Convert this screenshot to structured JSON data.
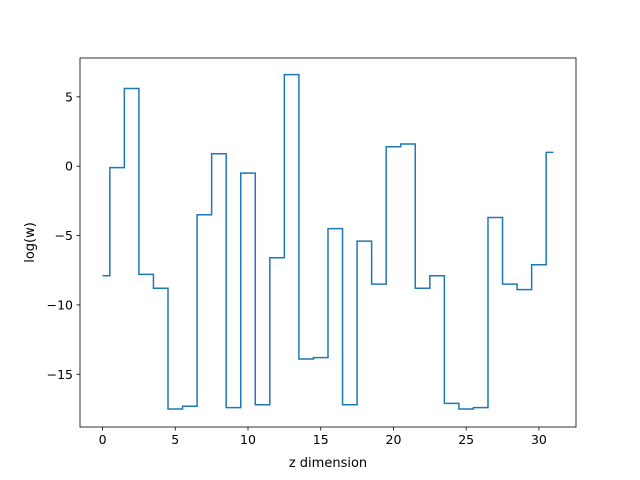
{
  "chart_data": {
    "type": "line",
    "drawstyle": "steps-mid",
    "title": "",
    "xlabel": "z dimension",
    "ylabel": "log(w)",
    "xlim": [
      -1.55,
      32.55
    ],
    "ylim": [
      -18.8,
      7.8
    ],
    "xticks": [
      0,
      5,
      10,
      15,
      20,
      25,
      30
    ],
    "yticks": [
      5,
      0,
      -5,
      -10,
      -15
    ],
    "ytick_labels": [
      "5",
      "0",
      "−5",
      "−10",
      "−15"
    ],
    "grid": false,
    "line_color": "#1f77b4",
    "x": [
      0,
      1,
      2,
      3,
      4,
      5,
      6,
      7,
      8,
      9,
      10,
      11,
      12,
      13,
      14,
      15,
      16,
      17,
      18,
      19,
      20,
      21,
      22,
      23,
      24,
      25,
      26,
      27,
      28,
      29,
      30,
      31
    ],
    "values": [
      -7.9,
      -0.1,
      5.6,
      -7.8,
      -8.8,
      -17.5,
      -17.3,
      -3.5,
      0.9,
      -17.4,
      -0.5,
      -17.2,
      -6.6,
      6.6,
      -13.9,
      -13.8,
      -4.5,
      -17.2,
      -5.4,
      -8.5,
      1.4,
      1.6,
      -8.8,
      -7.9,
      -17.1,
      -17.5,
      -17.4,
      -3.7,
      -8.5,
      -8.9,
      -7.1,
      1.0
    ]
  }
}
